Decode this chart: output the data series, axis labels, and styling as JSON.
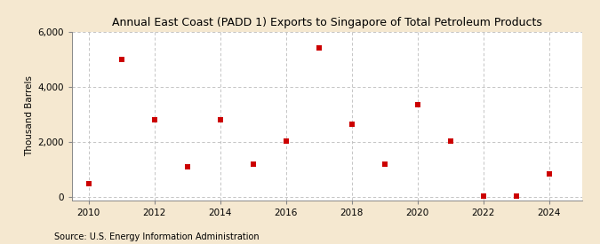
{
  "title": "Annual East Coast (PADD 1) Exports to Singapore of Total Petroleum Products",
  "ylabel": "Thousand Barrels",
  "source": "Source: U.S. Energy Information Administration",
  "background_color": "#f5e8d0",
  "plot_background_color": "#ffffff",
  "marker_color": "#cc0000",
  "marker_size": 5,
  "marker_style": "s",
  "grid_color": "#bbbbbb",
  "xlim": [
    2009.5,
    2025.0
  ],
  "ylim": [
    -100,
    6000
  ],
  "yticks": [
    0,
    2000,
    4000,
    6000
  ],
  "ytick_labels": [
    "0",
    "2,000",
    "4,000",
    "6,000"
  ],
  "xticks": [
    2010,
    2012,
    2014,
    2016,
    2018,
    2020,
    2022,
    2024
  ],
  "years": [
    2010,
    2011,
    2012,
    2013,
    2014,
    2015,
    2016,
    2017,
    2018,
    2019,
    2020,
    2021,
    2022,
    2023,
    2024
  ],
  "values": [
    500,
    5000,
    2800,
    1100,
    2800,
    1200,
    2050,
    5400,
    2650,
    1200,
    3350,
    2050,
    30,
    30,
    850
  ]
}
